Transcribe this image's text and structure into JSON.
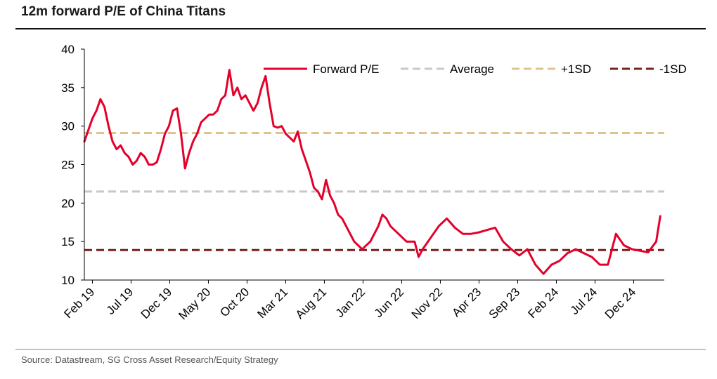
{
  "header": {
    "title": "12m forward P/E of China Titans"
  },
  "footer": {
    "source": "Source: Datastream, SG Cross Asset Research/Equity Strategy"
  },
  "chart_data": {
    "type": "line",
    "title": "12m forward P/E of China Titans",
    "xlabel": "",
    "ylabel": "",
    "ylim": [
      10,
      40
    ],
    "yticks": [
      10,
      15,
      20,
      25,
      30,
      35,
      40
    ],
    "xtick_labels": [
      "Feb 19",
      "Jul 19",
      "Dec 19",
      "May 20",
      "Oct 20",
      "Mar 21",
      "Aug 21",
      "Jan 22",
      "Jun 22",
      "Nov 22",
      "Apr 23",
      "Sep 23",
      "Feb 24",
      "Jul 24",
      "Dec 24"
    ],
    "xlim": [
      0,
      72
    ],
    "grid": false,
    "legend_position": "top-right",
    "colors": {
      "forward_pe": "#e4002b",
      "average": "#c8c8c8",
      "plus_1sd": "#e0c38c",
      "minus_1sd": "#7b1f1f"
    },
    "series": [
      {
        "name": "Forward P/E",
        "style": "solid",
        "x": [
          0,
          0.5,
          1,
          1.5,
          2,
          2.5,
          3,
          3.5,
          4,
          4.5,
          5,
          5.5,
          6,
          6.5,
          7,
          7.5,
          8,
          8.5,
          9,
          9.5,
          10,
          10.5,
          11,
          11.5,
          12,
          12.5,
          13,
          13.5,
          14,
          14.5,
          15,
          15.5,
          16,
          16.5,
          17,
          17.5,
          18,
          18.5,
          19,
          19.5,
          20,
          20.5,
          21,
          21.5,
          22,
          22.5,
          23,
          23.5,
          24,
          24.5,
          25,
          25.5,
          26,
          26.5,
          27,
          27.5,
          28,
          28.5,
          29,
          29.5,
          30,
          30.5,
          31,
          31.5,
          32,
          32.5,
          33,
          33.5,
          34,
          34.5,
          35,
          35.5,
          36,
          36.5,
          37,
          37.5,
          38,
          38.5,
          39,
          40,
          41,
          41.5,
          42,
          43,
          44,
          45,
          46,
          47,
          48,
          49,
          50,
          51,
          52,
          53,
          54,
          55,
          56,
          57,
          58,
          59,
          60,
          61,
          62,
          63,
          64,
          65,
          66,
          67,
          68,
          69,
          70,
          71,
          71.5
        ],
        "values": [
          28.0,
          29.5,
          31.0,
          32.0,
          33.5,
          32.5,
          30.0,
          28.0,
          27.0,
          27.5,
          26.5,
          26.0,
          25.0,
          25.5,
          26.5,
          26.0,
          25.0,
          25.0,
          25.3,
          27.0,
          29.0,
          30.0,
          32.0,
          32.3,
          29.0,
          24.5,
          26.5,
          28.0,
          29.0,
          30.5,
          31.0,
          31.5,
          31.5,
          32.0,
          33.5,
          34.0,
          37.3,
          34.0,
          35.0,
          33.5,
          34.0,
          33.0,
          32.0,
          33.0,
          35.0,
          36.5,
          33.0,
          30.0,
          29.8,
          30.0,
          29.0,
          28.5,
          28.0,
          29.3,
          27.0,
          25.5,
          24.0,
          22.0,
          21.5,
          20.5,
          23.0,
          21.0,
          20.0,
          18.5,
          18.0,
          17.0,
          16.0,
          15.0,
          14.5,
          14.0,
          14.5,
          15.0,
          16.0,
          17.0,
          18.5,
          18.0,
          17.0,
          16.5,
          16.0,
          15.0,
          15.0,
          13.0,
          14.0,
          15.5,
          17.0,
          18.0,
          16.8,
          16.0,
          16.0,
          16.2,
          16.5,
          16.8,
          15.0,
          14.0,
          13.2,
          14.0,
          12.0,
          10.8,
          12.0,
          12.5,
          13.5,
          14.0,
          13.5,
          13.0,
          12.0,
          12.0,
          16.0,
          14.5,
          14.0,
          13.8,
          13.6,
          15.0,
          18.3
        ]
      },
      {
        "name": "Average",
        "style": "dashed",
        "x": [
          0,
          72
        ],
        "values": [
          21.5,
          21.5
        ]
      },
      {
        "name": "+1SD",
        "style": "dashed",
        "x": [
          0,
          72
        ],
        "values": [
          29.1,
          29.1
        ]
      },
      {
        "name": "-1SD",
        "style": "dashed",
        "x": [
          0,
          72
        ],
        "values": [
          13.9,
          13.9
        ]
      }
    ]
  }
}
